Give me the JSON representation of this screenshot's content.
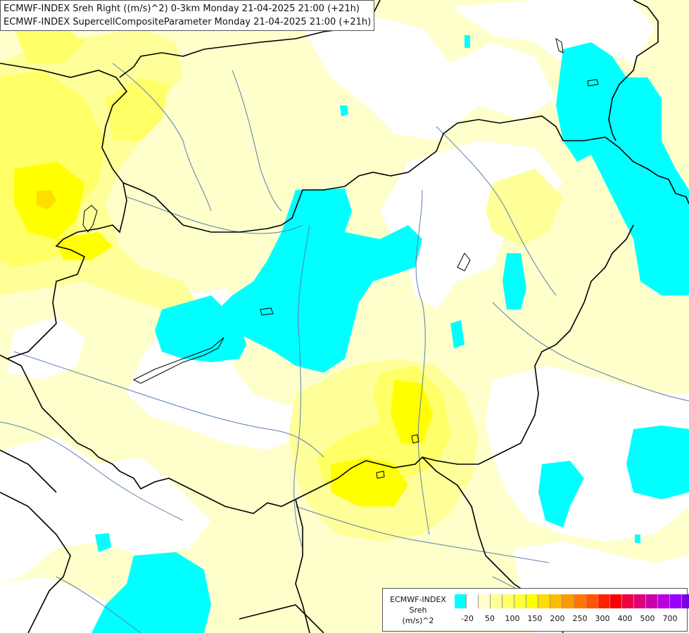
{
  "header": {
    "line1": "ECMWF-INDEX Sreh Right ((m/s)^2) 0-3km Monday 21-04-2025 21:00 (+21h)",
    "line2": "ECMWF-INDEX SupercellCompositeParameter Monday 21-04-2025 21:00 (+21h)"
  },
  "legend": {
    "title_1": "ECMWF-INDEX",
    "title_2": "Sreh",
    "title_3": "(m/s)^2",
    "colors": [
      "#00ffff",
      "#ffffff",
      "#ffffcc",
      "#ffff99",
      "#ffff66",
      "#ffff33",
      "#ffff00",
      "#ffdd00",
      "#ffbb00",
      "#ff9900",
      "#ff7700",
      "#ff5500",
      "#ff2200",
      "#ff0000",
      "#ee0044",
      "#dd0077",
      "#cc00aa",
      "#bb00dd",
      "#9900ff",
      "#7700dd",
      "#5500bb",
      "#330099",
      "#000077"
    ],
    "ticks": [
      {
        "label": "-20",
        "pos": 1
      },
      {
        "label": "50",
        "pos": 3
      },
      {
        "label": "100",
        "pos": 5
      },
      {
        "label": "150",
        "pos": 7
      },
      {
        "label": "200",
        "pos": 9
      },
      {
        "label": "250",
        "pos": 11
      },
      {
        "label": "300",
        "pos": 13
      },
      {
        "label": "400",
        "pos": 15
      },
      {
        "label": "500",
        "pos": 17
      },
      {
        "label": "700",
        "pos": 19
      }
    ]
  },
  "map": {
    "colors": {
      "cyan": "#00ffff",
      "white": "#ffffff",
      "pale_yellow": "#ffffcc",
      "light_yellow": "#ffff99",
      "yellow": "#ffff66",
      "bright_yellow": "#ffff00",
      "orange_yellow": "#ffdd00",
      "border": "#000000",
      "river": "#5a7fae"
    }
  }
}
